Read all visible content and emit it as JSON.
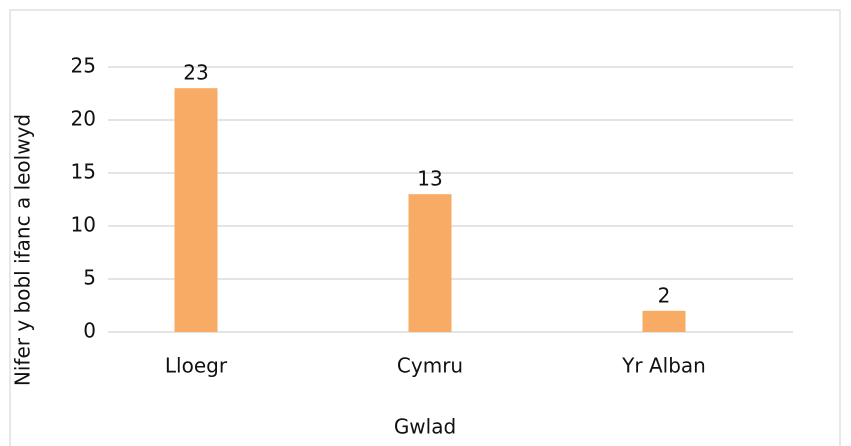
{
  "chart_data": {
    "type": "bar",
    "categories": [
      "Lloegr",
      "Cymru",
      "Yr Alban"
    ],
    "values": [
      23,
      13,
      2
    ],
    "color": "#f7ab64",
    "xlabel": "Gwlad",
    "ylabel": "Nifer y bobl ifanc a leolwyd",
    "ylim": [
      0,
      25
    ],
    "yticks": [
      0,
      5,
      10,
      15,
      20,
      25
    ],
    "grid": true
  }
}
